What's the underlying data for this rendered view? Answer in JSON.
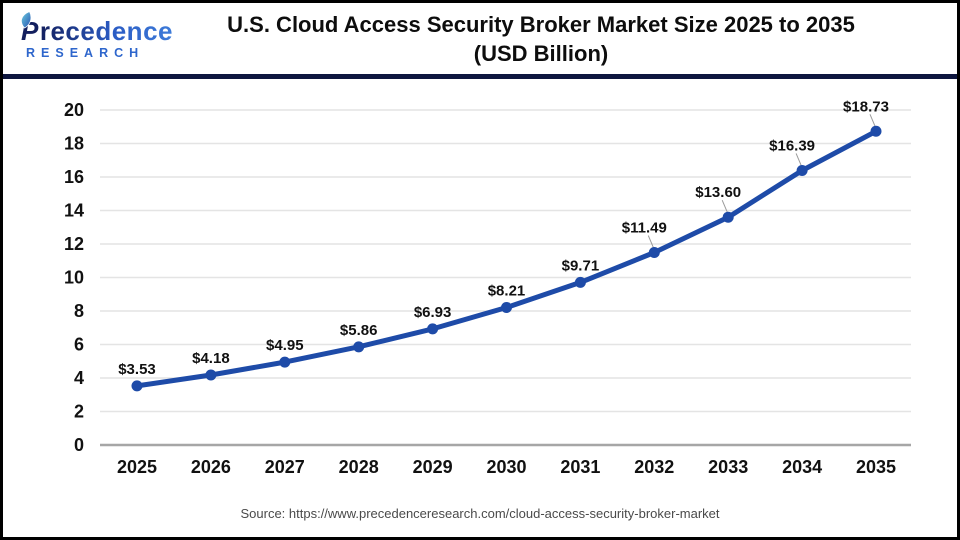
{
  "logo": {
    "brand_first_letter": "P",
    "brand_rest": "recedence",
    "brand_sub": "RESEARCH"
  },
  "header": {
    "title_line1": "U.S. Cloud Access Security Broker Market Size 2025 to 2035",
    "title_line2": "(USD Billion)"
  },
  "footer": {
    "source": "Source: https://www.precedenceresearch.com/cloud-access-security-broker-market"
  },
  "colors": {
    "line_blue": "#1E4BA8",
    "marker_blue": "#1E4BA8",
    "divider_navy": "#0E163F",
    "grid_line": "#E4E4E4",
    "zero_axis_line": "#A6A6A6",
    "leader_line": "#9A9A9A",
    "tick_text": "#111111",
    "data_label_text": "#111111",
    "source_gray": "#4A4A4A",
    "logo_navy": "#131F5E",
    "logo_blue": "#2E66CC",
    "page_border": "#000000"
  },
  "chart_data": {
    "type": "line",
    "title": "U.S. Cloud Access Security Broker Market Size 2025 to 2035 (USD Billion)",
    "xlabel": "",
    "ylabel": "",
    "categories": [
      "2025",
      "2026",
      "2027",
      "2028",
      "2029",
      "2030",
      "2031",
      "2032",
      "2033",
      "2034",
      "2035"
    ],
    "series": [
      {
        "name": "U.S. Cloud Access Security Broker Market Size (USD Billion)",
        "values": [
          3.53,
          4.18,
          4.95,
          5.86,
          6.93,
          8.21,
          9.71,
          11.49,
          13.6,
          16.39,
          18.73
        ]
      }
    ],
    "point_labels": [
      "$3.53",
      "$4.18",
      "$4.95",
      "$5.86",
      "$6.93",
      "$8.21",
      "$9.71",
      "$11.49",
      "$13.60",
      "$16.39",
      "$18.73"
    ],
    "ylim": [
      0,
      20
    ],
    "yticks": [
      0,
      2,
      4,
      6,
      8,
      10,
      12,
      14,
      16,
      18,
      20
    ],
    "grid": "horizontal",
    "legend_position": "none",
    "leader_line_points": [
      7,
      8,
      9,
      10
    ]
  }
}
